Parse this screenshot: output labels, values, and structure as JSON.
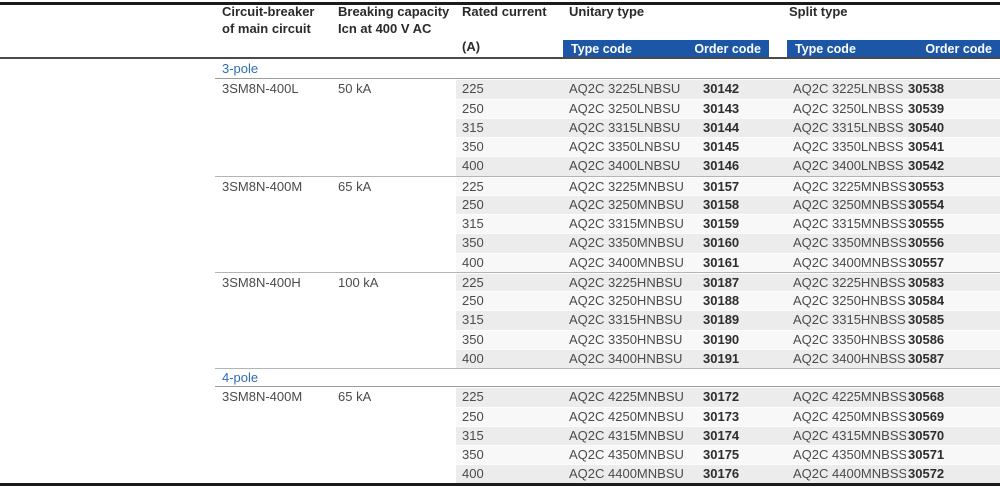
{
  "header": {
    "columns": {
      "breaker": {
        "line1": "Circuit-breaker",
        "line2": "of main circuit"
      },
      "capacity": {
        "line1": "Breaking capacity",
        "line2": "Icn at 400 V AC"
      },
      "current": {
        "line1": "Rated current",
        "unit": "(A)"
      }
    },
    "groups": {
      "unitary": "Unitary type",
      "split": "Split type",
      "type_code": "Type code",
      "order_code": "Order code"
    }
  },
  "colors": {
    "bar_blue": "#1b57a6",
    "section_blue": "#2f6cb7",
    "row_shade": "#ececec",
    "rule_dark": "#1b1b1b"
  },
  "sections": [
    {
      "label": "3-pole",
      "blocks": [
        {
          "breaker": "3SM8N-400L",
          "capacity": "50 kA",
          "rows": [
            {
              "current": "225",
              "unitary_type": "AQ2C 3225LNBSU",
              "unitary_order": "30142",
              "split_type": "AQ2C 3225LNBSS",
              "split_order": "30538"
            },
            {
              "current": "250",
              "unitary_type": "AQ2C 3250LNBSU",
              "unitary_order": "30143",
              "split_type": "AQ2C 3250LNBSS",
              "split_order": "30539"
            },
            {
              "current": "315",
              "unitary_type": "AQ2C 3315LNBSU",
              "unitary_order": "30144",
              "split_type": "AQ2C 3315LNBSS",
              "split_order": "30540"
            },
            {
              "current": "350",
              "unitary_type": "AQ2C 3350LNBSU",
              "unitary_order": "30145",
              "split_type": "AQ2C 3350LNBSS",
              "split_order": "30541"
            },
            {
              "current": "400",
              "unitary_type": "AQ2C 3400LNBSU",
              "unitary_order": "30146",
              "split_type": "AQ2C 3400LNBSS",
              "split_order": "30542"
            }
          ]
        },
        {
          "breaker": "3SM8N-400M",
          "capacity": "65 kA",
          "rows": [
            {
              "current": "225",
              "unitary_type": "AQ2C 3225MNBSU",
              "unitary_order": "30157",
              "split_type": "AQ2C 3225MNBSS",
              "split_order": "30553"
            },
            {
              "current": "250",
              "unitary_type": "AQ2C 3250MNBSU",
              "unitary_order": "30158",
              "split_type": "AQ2C 3250MNBSS",
              "split_order": "30554"
            },
            {
              "current": "315",
              "unitary_type": "AQ2C 3315MNBSU",
              "unitary_order": "30159",
              "split_type": "AQ2C 3315MNBSS",
              "split_order": "30555"
            },
            {
              "current": "350",
              "unitary_type": "AQ2C 3350MNBSU",
              "unitary_order": "30160",
              "split_type": "AQ2C 3350MNBSS",
              "split_order": "30556"
            },
            {
              "current": "400",
              "unitary_type": "AQ2C 3400MNBSU",
              "unitary_order": "30161",
              "split_type": "AQ2C 3400MNBSS",
              "split_order": "30557"
            }
          ]
        },
        {
          "breaker": "3SM8N-400H",
          "capacity": "100 kA",
          "rows": [
            {
              "current": "225",
              "unitary_type": "AQ2C 3225HNBSU",
              "unitary_order": "30187",
              "split_type": "AQ2C 3225HNBSS",
              "split_order": "30583"
            },
            {
              "current": "250",
              "unitary_type": "AQ2C 3250HNBSU",
              "unitary_order": "30188",
              "split_type": "AQ2C 3250HNBSS",
              "split_order": "30584"
            },
            {
              "current": "315",
              "unitary_type": "AQ2C 3315HNBSU",
              "unitary_order": "30189",
              "split_type": "AQ2C 3315HNBSS",
              "split_order": "30585"
            },
            {
              "current": "350",
              "unitary_type": "AQ2C 3350HNBSU",
              "unitary_order": "30190",
              "split_type": "AQ2C 3350HNBSS",
              "split_order": "30586"
            },
            {
              "current": "400",
              "unitary_type": "AQ2C 3400HNBSU",
              "unitary_order": "30191",
              "split_type": "AQ2C 3400HNBSS",
              "split_order": "30587"
            }
          ]
        }
      ]
    },
    {
      "label": "4-pole",
      "blocks": [
        {
          "breaker": "3SM8N-400M",
          "capacity": "65 kA",
          "rows": [
            {
              "current": "225",
              "unitary_type": "AQ2C 4225MNBSU",
              "unitary_order": "30172",
              "split_type": "AQ2C 4225MNBSS",
              "split_order": "30568"
            },
            {
              "current": "250",
              "unitary_type": "AQ2C 4250MNBSU",
              "unitary_order": "30173",
              "split_type": "AQ2C 4250MNBSS",
              "split_order": "30569"
            },
            {
              "current": "315",
              "unitary_type": "AQ2C 4315MNBSU",
              "unitary_order": "30174",
              "split_type": "AQ2C 4315MNBSS",
              "split_order": "30570"
            },
            {
              "current": "350",
              "unitary_type": "AQ2C 4350MNBSU",
              "unitary_order": "30175",
              "split_type": "AQ2C 4350MNBSS",
              "split_order": "30571"
            },
            {
              "current": "400",
              "unitary_type": "AQ2C 4400MNBSU",
              "unitary_order": "30176",
              "split_type": "AQ2C 4400MNBSS",
              "split_order": "30572"
            }
          ]
        }
      ]
    }
  ]
}
